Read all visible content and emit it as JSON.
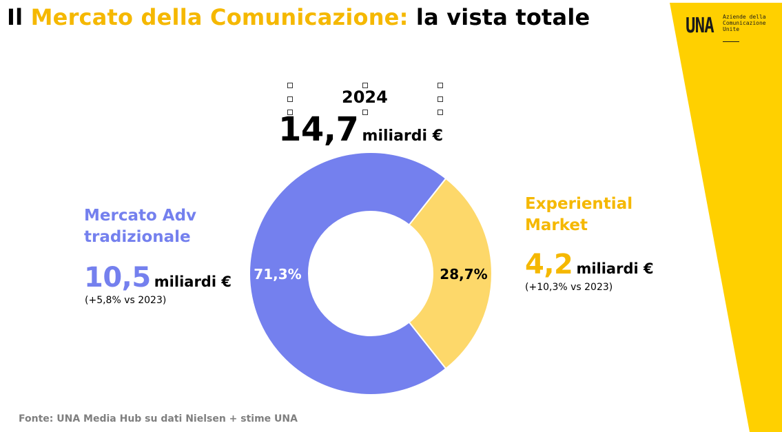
{
  "title": {
    "part1": "Il ",
    "part2": "Mercato della Comunicazione:",
    "part3": " la vista totale"
  },
  "logo": {
    "mark": "UNA",
    "line1": "Aziende della",
    "line2": "Comunicazione",
    "line3": "Unite"
  },
  "colors": {
    "accent": "#f5b800",
    "traditional": "#7480ee",
    "experiential": "#fdd86a",
    "band": "#ffd000"
  },
  "summary": {
    "year": "2024",
    "total_value": "14,7",
    "total_unit": "miliardi €"
  },
  "segments": {
    "traditional": {
      "title_line1": "Mercato Adv",
      "title_line2": "tradizionale",
      "value": "10,5",
      "unit": "miliardi €",
      "growth": "(+5,8% vs 2023)"
    },
    "experiential": {
      "title_line1": "Experiential",
      "title_line2": "Market",
      "value": "4,2",
      "unit": "miliardi €",
      "growth": "(+10,3% vs 2023)"
    }
  },
  "chart_data": {
    "type": "pie",
    "categories": [
      "Mercato Adv tradizionale",
      "Experiential Market"
    ],
    "values": [
      71.3,
      28.7
    ],
    "labels": [
      "71,3%",
      "28,7%"
    ],
    "title": "",
    "donut": true
  },
  "source": "Fonte: UNA Media Hub su dati Nielsen + stime UNA"
}
